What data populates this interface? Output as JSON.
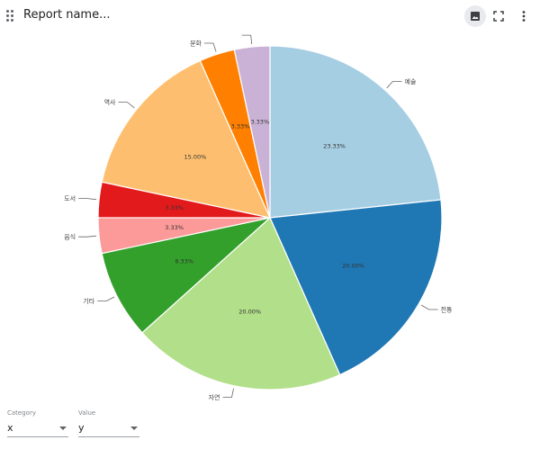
{
  "header": {
    "title": "Report name...",
    "icons": [
      "drag-handle-icon",
      "image-icon",
      "fullscreen-icon",
      "more-vert-icon"
    ]
  },
  "controls": {
    "category": {
      "label": "Category",
      "value": "x"
    },
    "value": {
      "label": "Value",
      "value": "y"
    }
  },
  "chart_data": {
    "type": "pie",
    "categories": [
      "예술",
      "전통",
      "자연",
      "기타",
      "음식",
      "도서",
      "역사",
      "문화",
      ""
    ],
    "values": [
      23.33,
      20.0,
      20.0,
      8.33,
      3.33,
      3.33,
      15.0,
      3.33,
      3.33
    ],
    "labels": [
      "23.33%",
      "20.00%",
      "20.00%",
      "8.33%",
      "3.33%",
      "3.33%",
      "15.00%",
      "3.33%",
      "3.33%"
    ],
    "colors": [
      "#a6cee3",
      "#1f78b4",
      "#b2df8a",
      "#33a02c",
      "#fb9a99",
      "#e31a1c",
      "#fdbf6f",
      "#ff7f00",
      "#cab2d6"
    ],
    "start": "top",
    "direction": "clockwise",
    "legend": "none"
  }
}
